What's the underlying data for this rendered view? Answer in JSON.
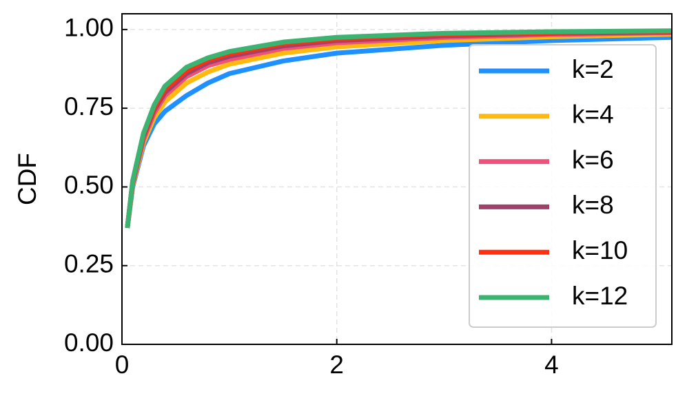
{
  "chart_data": {
    "type": "line",
    "y_label": "CDF",
    "x": [
      0.05,
      0.1,
      0.2,
      0.3,
      0.4,
      0.6,
      0.8,
      1.0,
      1.5,
      2,
      3,
      4,
      5.12
    ],
    "series": [
      {
        "name": "k=2",
        "color": "#1e90ff",
        "values": [
          0.37,
          0.5,
          0.63,
          0.7,
          0.74,
          0.79,
          0.83,
          0.86,
          0.9,
          0.925,
          0.95,
          0.965,
          0.975
        ]
      },
      {
        "name": "k=4",
        "color": "#ffb90f",
        "values": [
          0.37,
          0.505,
          0.64,
          0.72,
          0.77,
          0.83,
          0.865,
          0.89,
          0.925,
          0.945,
          0.965,
          0.977,
          0.985
        ]
      },
      {
        "name": "k=6",
        "color": "#f0507a",
        "values": [
          0.37,
          0.51,
          0.65,
          0.735,
          0.79,
          0.85,
          0.885,
          0.905,
          0.94,
          0.958,
          0.975,
          0.984,
          0.99
        ]
      },
      {
        "name": "k=8",
        "color": "#a0416a",
        "values": [
          0.37,
          0.515,
          0.66,
          0.745,
          0.8,
          0.86,
          0.895,
          0.915,
          0.948,
          0.965,
          0.98,
          0.988,
          0.992
        ]
      },
      {
        "name": "k=10",
        "color": "#ff3010",
        "values": [
          0.37,
          0.518,
          0.665,
          0.752,
          0.81,
          0.87,
          0.903,
          0.923,
          0.955,
          0.97,
          0.984,
          0.99,
          0.994
        ]
      },
      {
        "name": "k=12",
        "color": "#3cb371",
        "values": [
          0.37,
          0.52,
          0.67,
          0.76,
          0.82,
          0.88,
          0.91,
          0.93,
          0.96,
          0.975,
          0.988,
          0.993,
          0.996
        ]
      }
    ],
    "xlim": [
      0,
      5.12
    ],
    "ylim": [
      0,
      1.05
    ],
    "xticks": [
      0,
      2,
      4
    ],
    "yticks": [
      {
        "value": 0,
        "label": "0.00"
      },
      {
        "value": 0.25,
        "label": "0.25"
      },
      {
        "value": 0.5,
        "label": "0.50"
      },
      {
        "value": 0.75,
        "label": "0.75"
      },
      {
        "value": 1,
        "label": "1.00"
      }
    ],
    "grid": true,
    "legend": "upper right"
  }
}
